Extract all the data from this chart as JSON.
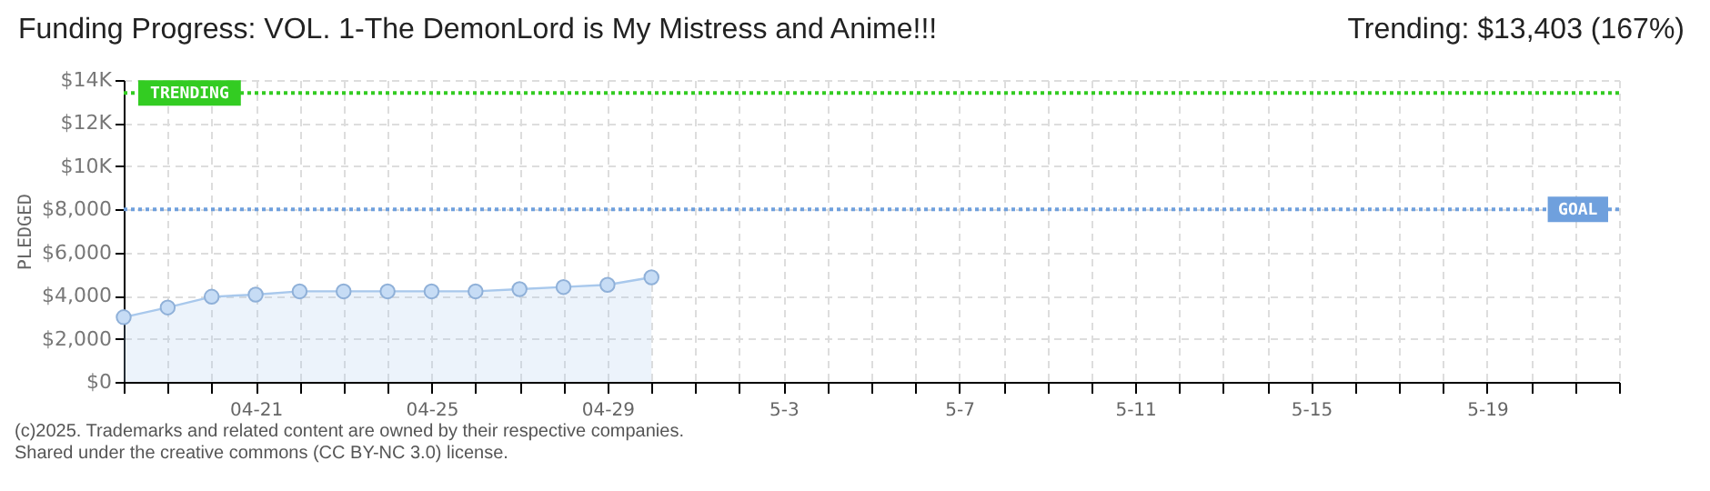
{
  "chart_data": {
    "type": "area",
    "title": "Funding Progress: VOL. 1-The DemonLord is My Mistress and Anime!!!",
    "subtitle": "Trending: $13,403 (167%)",
    "ylabel": "PLEDGED",
    "x": [
      "--04-18",
      "--04-19",
      "--04-20",
      "--04-21",
      "--04-22",
      "--04-23",
      "--04-24",
      "--04-25",
      "--04-26",
      "--04-27",
      "--04-28",
      "--04-29",
      "--04-30"
    ],
    "series": [
      {
        "color": "#a8c8ec",
        "values": [
          3000,
          3450,
          3950,
          4050,
          4200,
          4200,
          4200,
          4200,
          4200,
          4300,
          4400,
          4500,
          4850
        ]
      }
    ],
    "xlim": [
      "--04-18",
      "--05-22"
    ],
    "xticks": [
      {
        "value": "--04-18",
        "label": null
      },
      {
        "value": "--04-19",
        "label": null
      },
      {
        "value": "--04-20",
        "label": null
      },
      {
        "value": "--04-21",
        "label": "04-21"
      },
      {
        "value": "--04-22",
        "label": null
      },
      {
        "value": "--04-23",
        "label": null
      },
      {
        "value": "--04-24",
        "label": null
      },
      {
        "value": "--04-25",
        "label": "04-25"
      },
      {
        "value": "--04-26",
        "label": null
      },
      {
        "value": "--04-27",
        "label": null
      },
      {
        "value": "--04-28",
        "label": null
      },
      {
        "value": "--04-29",
        "label": "04-29"
      },
      {
        "value": "--04-30",
        "label": null
      },
      {
        "value": "--05-01",
        "label": null
      },
      {
        "value": "--05-02",
        "label": null
      },
      {
        "value": "--05-03",
        "label": "5-3"
      },
      {
        "value": "--05-04",
        "label": null
      },
      {
        "value": "--05-05",
        "label": null
      },
      {
        "value": "--05-06",
        "label": null
      },
      {
        "value": "--05-07",
        "label": "5-7"
      },
      {
        "value": "--05-08",
        "label": null
      },
      {
        "value": "--05-09",
        "label": null
      },
      {
        "value": "--05-10",
        "label": null
      },
      {
        "value": "--05-11",
        "label": "5-11"
      },
      {
        "value": "--05-12",
        "label": null
      },
      {
        "value": "--05-13",
        "label": null
      },
      {
        "value": "--05-14",
        "label": null
      },
      {
        "value": "--05-15",
        "label": "5-15"
      },
      {
        "value": "--05-16",
        "label": null
      },
      {
        "value": "--05-17",
        "label": null
      },
      {
        "value": "--05-18",
        "label": null
      },
      {
        "value": "--05-19",
        "label": "5-19"
      },
      {
        "value": "--05-20",
        "label": null
      },
      {
        "value": "--05-21",
        "label": null
      },
      {
        "value": "--05-22",
        "label": null
      }
    ],
    "ylim": [
      0,
      14000
    ],
    "yticks": [
      {
        "value": 0,
        "label": "$0"
      },
      {
        "value": 2000,
        "label": "$2,000"
      },
      {
        "value": 4000,
        "label": "$4,000"
      },
      {
        "value": 6000,
        "label": "$6,000"
      },
      {
        "value": 8000,
        "label": "$8,000"
      },
      {
        "value": 10000,
        "label": "$10K"
      },
      {
        "value": 12000,
        "label": "$12K"
      },
      {
        "value": 14000,
        "label": "$14K"
      }
    ],
    "ref_lines": [
      {
        "axis": "y",
        "value": 13403,
        "label": "TRENDING",
        "color": "#33cc22",
        "line_style": "dotted"
      },
      {
        "axis": "y",
        "value": 8000,
        "label": "GOAL",
        "color": "#6fa0dd",
        "line_style": "dotted"
      }
    ],
    "grid": true,
    "marker": "circle",
    "annotations": [
      "(c)2025. Trademarks and related content are owned by their respective companies.",
      "Shared under the creative commons (CC BY-NC 3.0) license."
    ]
  }
}
